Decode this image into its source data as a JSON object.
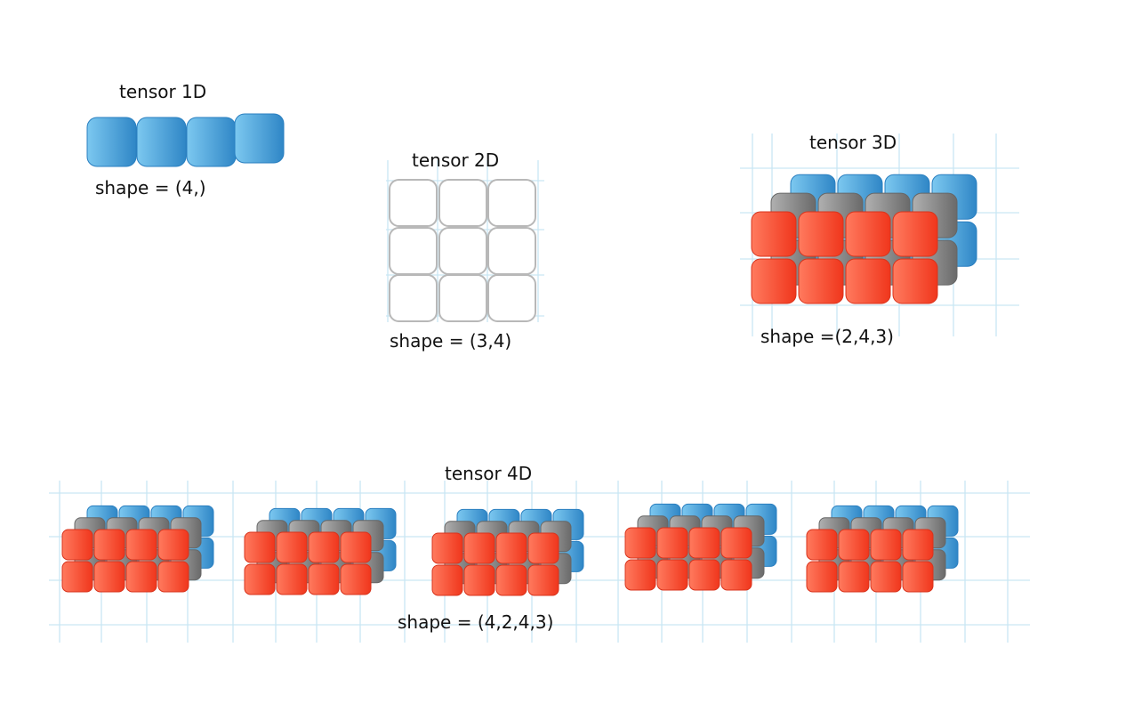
{
  "tensors": {
    "t1d": {
      "title": "tensor 1D",
      "shape": "shape = (4,)"
    },
    "t2d": {
      "title": "tensor 2D",
      "shape": "shape = (3,4)"
    },
    "t3d": {
      "title": "tensor 3D",
      "shape": "shape =(2,4,3)"
    },
    "t4d": {
      "title": "tensor 4D",
      "shape": "shape = (4,2,4,3)"
    }
  },
  "colors": {
    "blue": "#4ea8e0",
    "blue_dark": "#2a7fc0",
    "gray": "#8e8e8e",
    "gray_dark": "#666666",
    "red": "#ff4a2e",
    "red_dark": "#d8331c",
    "white_cell_border": "#b8b8b8",
    "grid": "#c9e6f3"
  }
}
